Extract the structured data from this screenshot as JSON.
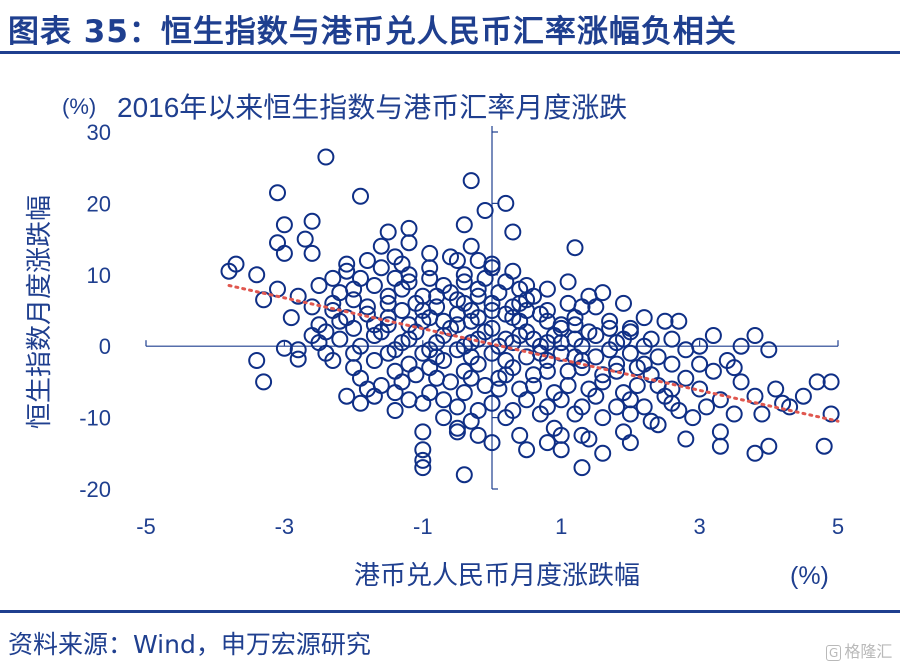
{
  "header": {
    "figure_title": "图表 35：恒生指数与港币兑人民币汇率涨幅负相关"
  },
  "footer": {
    "source": "资料来源：Wind，申万宏源研究",
    "watermark": "格隆汇",
    "watermark_icon": "G"
  },
  "colors": {
    "primary": "#1f3f8f",
    "marker": "#0f2f86",
    "trend": "#e0574f"
  },
  "chart_data": {
    "type": "scatter",
    "title": "2016年以来恒生指数与港币汇率月度涨跌",
    "ylabel_unit": "(%)",
    "ylabel": "恒生指数月度涨跌幅",
    "xlabel": "港币兑人民币月度涨跌幅",
    "xlabel_unit": "(%)",
    "xlim": [
      -5,
      5
    ],
    "ylim": [
      -20,
      30
    ],
    "xticks": [
      -5,
      -3,
      -1,
      1,
      3,
      5
    ],
    "yticks": [
      30,
      20,
      10,
      0,
      -10,
      -20
    ],
    "trendline": {
      "x": [
        -3.8,
        5.0
      ],
      "y": [
        8.5,
        -10.5
      ],
      "style": "dotted"
    },
    "grid": false,
    "legend": "none",
    "points": [
      [
        -2.4,
        26.5
      ],
      [
        -0.3,
        23.2
      ],
      [
        -3.1,
        21.5
      ],
      [
        -1.9,
        21.0
      ],
      [
        0.2,
        20.0
      ],
      [
        -0.1,
        19.0
      ],
      [
        -2.6,
        17.5
      ],
      [
        -3.0,
        17.0
      ],
      [
        -0.4,
        17.0
      ],
      [
        -1.2,
        16.5
      ],
      [
        -1.5,
        16.0
      ],
      [
        0.3,
        16.0
      ],
      [
        -2.7,
        15.0
      ],
      [
        -3.1,
        14.5
      ],
      [
        -1.2,
        14.5
      ],
      [
        -0.3,
        14.0
      ],
      [
        -1.6,
        14.0
      ],
      [
        1.2,
        13.8
      ],
      [
        -3.0,
        13.0
      ],
      [
        -2.6,
        13.0
      ],
      [
        -0.9,
        13.0
      ],
      [
        -0.5,
        12.0
      ],
      [
        -1.8,
        12.0
      ],
      [
        0.0,
        11.5
      ],
      [
        -3.7,
        11.5
      ],
      [
        -3.8,
        10.5
      ],
      [
        -3.4,
        10.0
      ],
      [
        -1.2,
        10.0
      ],
      [
        0.3,
        10.5
      ],
      [
        -2.3,
        9.5
      ],
      [
        1.1,
        9.0
      ],
      [
        -3.1,
        8.0
      ],
      [
        0.4,
        8.0
      ],
      [
        -2.2,
        7.5
      ],
      [
        1.6,
        7.5
      ],
      [
        -3.3,
        6.5
      ],
      [
        1.9,
        6.0
      ],
      [
        1.5,
        5.5
      ],
      [
        -2.3,
        5.0
      ],
      [
        2.2,
        4.0
      ],
      [
        2.5,
        3.5
      ],
      [
        2.7,
        3.5
      ],
      [
        1.7,
        3.5
      ],
      [
        -2.5,
        3.0
      ],
      [
        2.0,
        2.5
      ],
      [
        3.2,
        1.5
      ],
      [
        3.8,
        1.5
      ],
      [
        2.6,
        1.0
      ],
      [
        -2.5,
        0.5
      ],
      [
        3.0,
        0.0
      ],
      [
        3.6,
        0.0
      ],
      [
        4.0,
        -0.5
      ],
      [
        -3.0,
        -0.3
      ],
      [
        -2.8,
        -0.5
      ],
      [
        -3.4,
        -2.0
      ],
      [
        -2.8,
        -1.8
      ],
      [
        3.4,
        -2.0
      ],
      [
        2.2,
        -2.5
      ],
      [
        -3.3,
        -5.0
      ],
      [
        3.2,
        -3.5
      ],
      [
        3.6,
        -5.0
      ],
      [
        4.5,
        -7.0
      ],
      [
        4.7,
        -5.0
      ],
      [
        4.9,
        -5.0
      ],
      [
        4.3,
        -8.5
      ],
      [
        4.9,
        -9.5
      ],
      [
        3.9,
        -9.5
      ],
      [
        4.2,
        -8.0
      ],
      [
        3.3,
        -7.5
      ],
      [
        2.6,
        -8.0
      ],
      [
        2.0,
        -9.5
      ],
      [
        2.9,
        -10.0
      ],
      [
        2.4,
        -11.0
      ],
      [
        1.9,
        -12.0
      ],
      [
        3.3,
        -12.0
      ],
      [
        2.8,
        -13.0
      ],
      [
        1.4,
        -13.0
      ],
      [
        1.3,
        -12.5
      ],
      [
        4.8,
        -14.0
      ],
      [
        4.0,
        -14.0
      ],
      [
        3.3,
        -14.0
      ],
      [
        2.0,
        -13.5
      ],
      [
        1.0,
        -14.5
      ],
      [
        0.5,
        -14.5
      ],
      [
        0.0,
        -13.5
      ],
      [
        -0.2,
        -12.5
      ],
      [
        -0.5,
        -11.5
      ],
      [
        -1.0,
        -14.5
      ],
      [
        -1.0,
        -16.0
      ],
      [
        -1.0,
        -17.0
      ],
      [
        -0.4,
        -18.0
      ],
      [
        1.3,
        -17.0
      ],
      [
        3.8,
        -15.0
      ],
      [
        1.6,
        -15.0
      ],
      [
        0.8,
        -13.5
      ],
      [
        -0.7,
        -10.0
      ],
      [
        -1.4,
        -9.0
      ],
      [
        -1.9,
        -8.0
      ],
      [
        -2.1,
        -7.0
      ],
      [
        -1.8,
        -6.0
      ],
      [
        -1.3,
        -5.0
      ],
      [
        -0.8,
        -4.5
      ],
      [
        -0.3,
        -4.5
      ],
      [
        0.2,
        -4.0
      ],
      [
        0.8,
        -3.5
      ],
      [
        1.3,
        -3.0
      ],
      [
        1.8,
        -2.5
      ],
      [
        -2.0,
        -3.0
      ],
      [
        -2.3,
        -2.0
      ],
      [
        -2.0,
        -1.0
      ],
      [
        -1.5,
        -1.0
      ],
      [
        -1.0,
        -1.0
      ],
      [
        -0.5,
        -0.5
      ],
      [
        0.0,
        -1.0
      ],
      [
        0.5,
        -1.5
      ],
      [
        1.0,
        -1.0
      ],
      [
        1.5,
        -1.5
      ],
      [
        2.0,
        -1.0
      ],
      [
        -2.2,
        1.0
      ],
      [
        -1.7,
        1.5
      ],
      [
        -1.2,
        1.0
      ],
      [
        -0.7,
        1.5
      ],
      [
        -0.2,
        1.0
      ],
      [
        0.3,
        0.5
      ],
      [
        0.8,
        0.5
      ],
      [
        1.3,
        0.0
      ],
      [
        1.8,
        0.5
      ],
      [
        -2.0,
        2.5
      ],
      [
        -1.5,
        3.0
      ],
      [
        -1.0,
        3.5
      ],
      [
        -0.5,
        3.0
      ],
      [
        0.0,
        2.5
      ],
      [
        0.5,
        2.0
      ],
      [
        1.0,
        2.5
      ],
      [
        -1.8,
        4.5
      ],
      [
        -1.3,
        5.0
      ],
      [
        -0.8,
        5.5
      ],
      [
        -0.3,
        5.0
      ],
      [
        0.2,
        4.5
      ],
      [
        0.7,
        4.5
      ],
      [
        1.2,
        4.0
      ],
      [
        -2.0,
        6.5
      ],
      [
        -1.5,
        7.0
      ],
      [
        -1.0,
        7.0
      ],
      [
        -0.5,
        6.5
      ],
      [
        0.0,
        6.0
      ],
      [
        0.5,
        6.5
      ],
      [
        -1.7,
        8.5
      ],
      [
        -1.2,
        9.0
      ],
      [
        -0.7,
        8.5
      ],
      [
        -0.2,
        8.0
      ],
      [
        0.2,
        9.0
      ],
      [
        -2.1,
        10.5
      ],
      [
        -1.6,
        11.0
      ],
      [
        -0.9,
        11.0
      ],
      [
        -0.4,
        10.0
      ],
      [
        -1.4,
        12.5
      ],
      [
        -0.6,
        12.5
      ],
      [
        0.0,
        11.0
      ],
      [
        0.6,
        7.0
      ],
      [
        -2.5,
        8.5
      ],
      [
        -2.8,
        7.0
      ],
      [
        -2.6,
        5.5
      ],
      [
        -2.9,
        4.0
      ],
      [
        -2.2,
        3.5
      ],
      [
        -2.6,
        1.5
      ],
      [
        -2.4,
        -1.0
      ],
      [
        -1.7,
        -2.0
      ],
      [
        -1.2,
        -2.5
      ],
      [
        -0.7,
        -2.0
      ],
      [
        -0.2,
        -2.5
      ],
      [
        0.3,
        -3.0
      ],
      [
        0.8,
        -2.0
      ],
      [
        1.3,
        -2.0
      ],
      [
        1.8,
        -3.5
      ],
      [
        2.3,
        -4.0
      ],
      [
        2.8,
        -4.5
      ],
      [
        3.0,
        -6.0
      ],
      [
        2.6,
        -6.0
      ],
      [
        2.1,
        -5.5
      ],
      [
        1.6,
        -5.0
      ],
      [
        1.1,
        -5.5
      ],
      [
        0.6,
        -5.5
      ],
      [
        0.1,
        -6.0
      ],
      [
        -0.4,
        -6.5
      ],
      [
        -0.9,
        -6.5
      ],
      [
        -1.4,
        -6.5
      ],
      [
        -1.0,
        -8.0
      ],
      [
        -0.5,
        -8.5
      ],
      [
        0.0,
        -8.0
      ],
      [
        0.5,
        -7.5
      ],
      [
        1.0,
        -7.5
      ],
      [
        1.5,
        -7.0
      ],
      [
        2.0,
        -7.5
      ],
      [
        2.5,
        -7.0
      ],
      [
        1.2,
        -9.5
      ],
      [
        0.7,
        -9.5
      ],
      [
        0.2,
        -10.0
      ],
      [
        -0.3,
        -10.5
      ],
      [
        0.9,
        -11.5
      ],
      [
        1.6,
        -10.0
      ],
      [
        2.3,
        -10.5
      ],
      [
        3.1,
        -8.5
      ],
      [
        3.5,
        -9.5
      ],
      [
        3.8,
        -7.0
      ],
      [
        4.1,
        -6.0
      ],
      [
        3.0,
        -2.5
      ],
      [
        3.5,
        -3.0
      ],
      [
        2.4,
        -1.5
      ],
      [
        2.8,
        -0.5
      ],
      [
        2.3,
        1.0
      ],
      [
        2.0,
        2.0
      ],
      [
        1.5,
        1.5
      ],
      [
        1.0,
        0.5
      ],
      [
        0.6,
        1.0
      ],
      [
        0.1,
        0.0
      ],
      [
        -0.4,
        0.0
      ],
      [
        -0.9,
        -0.5
      ],
      [
        -1.4,
        -0.5
      ],
      [
        -1.9,
        0.0
      ],
      [
        -1.6,
        2.0
      ],
      [
        -1.1,
        2.0
      ],
      [
        -0.6,
        2.5
      ],
      [
        -0.1,
        2.0
      ],
      [
        0.4,
        1.5
      ],
      [
        0.9,
        1.5
      ],
      [
        1.4,
        2.0
      ],
      [
        1.9,
        1.0
      ],
      [
        -1.8,
        5.5
      ],
      [
        -1.1,
        6.0
      ],
      [
        -0.4,
        6.0
      ],
      [
        0.3,
        5.5
      ],
      [
        0.8,
        5.0
      ],
      [
        1.3,
        5.5
      ],
      [
        -1.3,
        8.0
      ],
      [
        -0.6,
        7.5
      ],
      [
        0.1,
        7.5
      ],
      [
        -1.9,
        9.5
      ],
      [
        -0.9,
        9.5
      ],
      [
        -0.1,
        9.5
      ],
      [
        -1.5,
        4.0
      ],
      [
        -0.9,
        4.0
      ],
      [
        -0.3,
        3.5
      ],
      [
        0.4,
        3.5
      ],
      [
        1.0,
        3.0
      ],
      [
        -2.3,
        6.0
      ],
      [
        -2.0,
        8.0
      ],
      [
        1.7,
        2.5
      ],
      [
        2.6,
        -2.5
      ],
      [
        2.1,
        -3.0
      ],
      [
        1.6,
        -4.0
      ],
      [
        1.1,
        -3.5
      ],
      [
        0.6,
        -4.0
      ],
      [
        0.1,
        -4.5
      ],
      [
        -0.4,
        -3.5
      ],
      [
        -0.9,
        -3.0
      ],
      [
        -1.4,
        -3.5
      ],
      [
        -1.9,
        -4.5
      ],
      [
        -1.6,
        -5.5
      ],
      [
        -1.1,
        -4.0
      ],
      [
        -0.6,
        -5.0
      ],
      [
        -0.1,
        -5.5
      ],
      [
        0.4,
        -6.0
      ],
      [
        0.9,
        -6.5
      ],
      [
        1.4,
        -6.0
      ],
      [
        1.9,
        -6.5
      ],
      [
        2.4,
        -5.5
      ],
      [
        1.8,
        -8.5
      ],
      [
        1.3,
        -8.5
      ],
      [
        0.8,
        -8.5
      ],
      [
        0.3,
        -9.0
      ],
      [
        -0.2,
        -9.0
      ],
      [
        -0.7,
        -7.5
      ],
      [
        -1.2,
        -7.5
      ],
      [
        -1.7,
        -7.0
      ],
      [
        2.2,
        -8.5
      ],
      [
        2.7,
        -9.0
      ],
      [
        -0.5,
        -12.0
      ],
      [
        0.4,
        -12.5
      ],
      [
        1.0,
        -12.5
      ],
      [
        -1.0,
        -12.0
      ],
      [
        -0.8,
        -1.5
      ],
      [
        -0.3,
        -1.5
      ],
      [
        0.2,
        -2.0
      ],
      [
        0.7,
        -1.0
      ],
      [
        1.2,
        -1.5
      ],
      [
        -1.3,
        0.5
      ],
      [
        -0.8,
        0.5
      ],
      [
        -0.3,
        0.5
      ],
      [
        0.2,
        1.0
      ],
      [
        0.7,
        0.0
      ],
      [
        1.2,
        1.0
      ],
      [
        1.7,
        -0.5
      ],
      [
        2.2,
        0.0
      ],
      [
        -2.4,
        2.0
      ],
      [
        -2.1,
        4.0
      ],
      [
        -1.7,
        3.0
      ],
      [
        -1.2,
        3.0
      ],
      [
        -0.7,
        3.5
      ],
      [
        -0.2,
        4.0
      ],
      [
        0.3,
        4.0
      ],
      [
        0.8,
        3.5
      ],
      [
        1.2,
        3.0
      ],
      [
        -1.0,
        5.0
      ],
      [
        -0.5,
        4.5
      ],
      [
        0.0,
        5.0
      ],
      [
        0.5,
        5.0
      ],
      [
        -1.5,
        6.0
      ],
      [
        -0.8,
        7.0
      ],
      [
        -0.2,
        7.0
      ],
      [
        0.4,
        6.0
      ],
      [
        -1.4,
        9.5
      ],
      [
        -0.4,
        9.0
      ],
      [
        0.5,
        8.5
      ],
      [
        -2.1,
        11.5
      ],
      [
        -1.3,
        11.5
      ],
      [
        -0.2,
        12.0
      ],
      [
        0.8,
        8.0
      ],
      [
        1.4,
        7.0
      ],
      [
        1.1,
        6.0
      ]
    ]
  }
}
